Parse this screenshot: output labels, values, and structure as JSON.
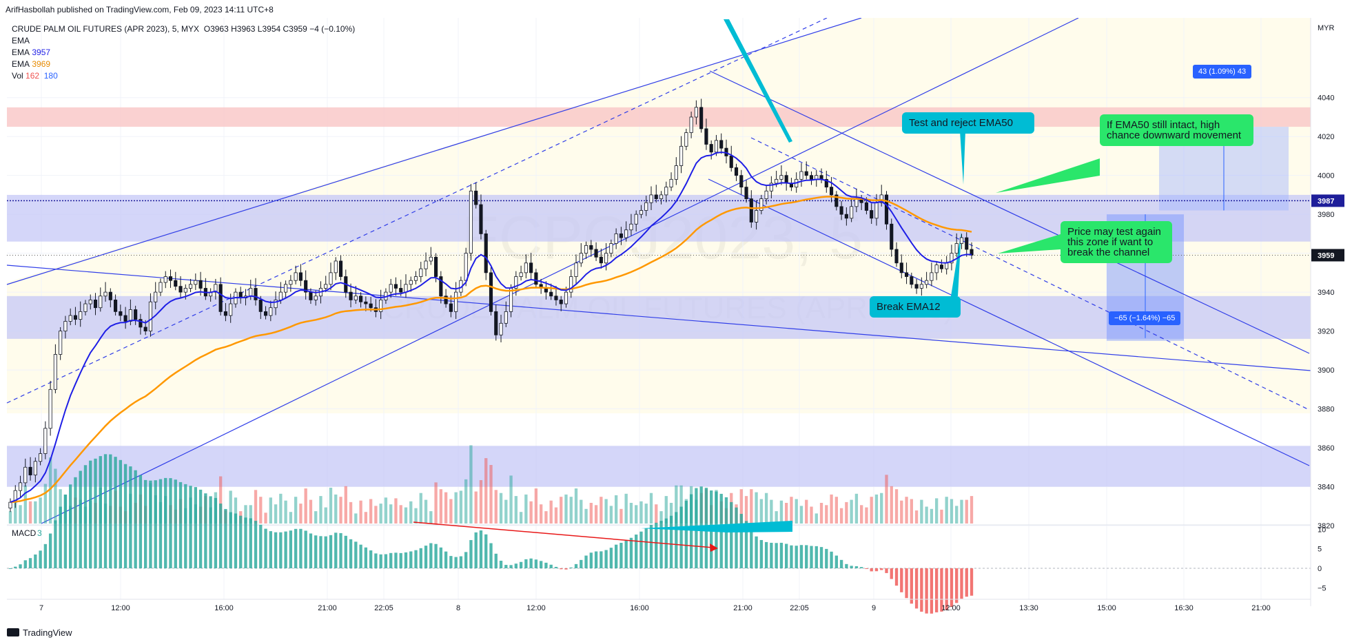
{
  "header": {
    "published": "ArifHasbollah published on TradingView.com, Feb 09, 2023 14:11 UTC+8"
  },
  "legend": {
    "symbol": "CRUDE PALM OIL FUTURES (APR 2023), 5, MYX",
    "ohlc": "O3963 H3963 L3954 C3959 −4 (−0.10%)",
    "ema_label": "EMA",
    "ema12_value": "3957",
    "ema50_value": "3969",
    "vol_label": "Vol",
    "vol_value": "162",
    "vol_ma": "180"
  },
  "watermark": {
    "big": "FCPOJ2023, 5",
    "small": "CRUDE PALM OIL FUTURES (APR 2023)"
  },
  "annotations": {
    "test_reject": "Test and reject EMA50",
    "break_ema12": "Break EMA12",
    "ema50_intact": "If EMA50 still intact, high chance downward movement",
    "price_test": "Price may test again this zone if want to break the channel"
  },
  "measures": {
    "up": "43 (1.09%) 43",
    "down": "−65 (−1.64%) −65"
  },
  "macd_label": "MACD",
  "macd_value": "3",
  "footer": {
    "brand": "TradingView"
  },
  "colors": {
    "up": "#26a69a",
    "down": "#ef5350",
    "ema12": "#1e1ee6",
    "ema50": "#ff9800",
    "zone": "#c5c8f7",
    "resistance": "#f9c9c9",
    "channel": "#2f3de8",
    "accent": "#00bcd4",
    "note_green": "#2ae66b"
  },
  "chart_data": {
    "type": "candlestick",
    "currency": "MYR",
    "last_price": 3959,
    "marked_price": 3987,
    "y_range": [
      3810,
      4050
    ],
    "y_ticks": [
      3820,
      3840,
      3860,
      3880,
      3900,
      3920,
      3940,
      3960,
      3980,
      4000,
      4020,
      4040
    ],
    "x_labels": [
      "7",
      "12:00",
      "16:00",
      "21:00",
      "22:05",
      "8",
      "12:00",
      "16:00",
      "21:00",
      "22:05",
      "9",
      "12:00",
      "13:30",
      "15:00",
      "16:30",
      "21:00"
    ],
    "macd_ticks": [
      10,
      5,
      0,
      -5
    ],
    "zones": [
      {
        "from": 4025,
        "to": 4035,
        "kind": "resistance"
      },
      {
        "from": 3966,
        "to": 3990,
        "kind": "support"
      },
      {
        "from": 3916,
        "to": 3938,
        "kind": "support"
      },
      {
        "from": 3840,
        "to": 3861,
        "kind": "support"
      }
    ],
    "close": [
      3832,
      3838,
      3842,
      3850,
      3846,
      3853,
      3857,
      3870,
      3890,
      3908,
      3920,
      3925,
      3928,
      3926,
      3930,
      3934,
      3936,
      3932,
      3938,
      3940,
      3936,
      3930,
      3928,
      3925,
      3931,
      3926,
      3922,
      3920,
      3935,
      3940,
      3945,
      3948,
      3946,
      3943,
      3940,
      3942,
      3944,
      3946,
      3942,
      3938,
      3940,
      3944,
      3930,
      3928,
      3934,
      3940,
      3937,
      3938,
      3942,
      3936,
      3930,
      3928,
      3932,
      3936,
      3940,
      3944,
      3946,
      3950,
      3946,
      3940,
      3936,
      3938,
      3942,
      3944,
      3950,
      3956,
      3948,
      3940,
      3936,
      3938,
      3935,
      3934,
      3932,
      3930,
      3936,
      3940,
      3944,
      3942,
      3940,
      3944,
      3946,
      3948,
      3952,
      3956,
      3958,
      3948,
      3938,
      3934,
      3930,
      3940,
      3946,
      3960,
      3992,
      3985,
      3970,
      3950,
      3930,
      3918,
      3924,
      3930,
      3942,
      3948,
      3950,
      3955,
      3950,
      3944,
      3942,
      3940,
      3938,
      3936,
      3934,
      3940,
      3948,
      3955,
      3960,
      3964,
      3962,
      3958,
      3955,
      3960,
      3965,
      3970,
      3968,
      3972,
      3975,
      3980,
      3982,
      3986,
      3990,
      3988,
      3990,
      3994,
      3998,
      4005,
      4015,
      4022,
      4030,
      4035,
      4024,
      4016,
      4012,
      4018,
      4014,
      4010,
      4004,
      4000,
      3994,
      3988,
      3976,
      3982,
      3988,
      3992,
      3996,
      3998,
      4000,
      3996,
      3994,
      3998,
      4002,
      4000,
      3998,
      4000,
      3998,
      3994,
      3990,
      3984,
      3980,
      3978,
      3984,
      3988,
      3986,
      3982,
      3978,
      3986,
      3990,
      3975,
      3962,
      3955,
      3950,
      3948,
      3944,
      3942,
      3944,
      3946,
      3950,
      3954,
      3952,
      3955,
      3960,
      3965,
      3968,
      3962,
      3959
    ]
  }
}
